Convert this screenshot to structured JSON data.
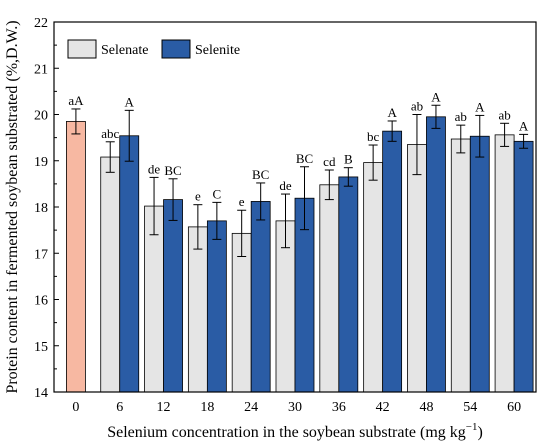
{
  "chart_data": {
    "type": "bar",
    "xlabel": "Selenium concentration in the soybean substrate (mg kg",
    "xlabel_sup": "−1",
    "xlabel_end": ")",
    "ylabel": "Protein content in fermented soybean substrated (%,D.W.)",
    "ylim": [
      14,
      22
    ],
    "yticks": [
      "14",
      "15",
      "16",
      "17",
      "18",
      "19",
      "20",
      "21",
      "22"
    ],
    "categories": [
      "0",
      "6",
      "12",
      "18",
      "24",
      "30",
      "36",
      "42",
      "48",
      "54",
      "60"
    ],
    "control": {
      "value": 19.85,
      "error": 0.27,
      "label": "aA",
      "color": "#F7B8A2"
    },
    "series": [
      {
        "name": "Selenate",
        "color": "#E5E5E5",
        "values": [
          null,
          19.08,
          18.02,
          17.57,
          17.43,
          17.7,
          18.48,
          18.96,
          19.35,
          19.47,
          19.56
        ],
        "errors": [
          null,
          0.33,
          0.62,
          0.48,
          0.5,
          0.58,
          0.32,
          0.38,
          0.65,
          0.3,
          0.25
        ],
        "labels": [
          "",
          "abc",
          "de",
          "e",
          "e",
          "de",
          "cd",
          "bc",
          "ab",
          "ab",
          "ab"
        ]
      },
      {
        "name": "Selenite",
        "color": "#2A5CA5",
        "values": [
          null,
          19.54,
          18.16,
          17.7,
          18.12,
          18.19,
          18.65,
          19.64,
          19.95,
          19.53,
          19.42
        ],
        "errors": [
          null,
          0.55,
          0.45,
          0.4,
          0.4,
          0.68,
          0.2,
          0.22,
          0.25,
          0.45,
          0.15
        ],
        "labels": [
          "",
          "A",
          "BC",
          "C",
          "BC",
          "BC",
          "B",
          "A",
          "A",
          "A",
          "A"
        ]
      }
    ],
    "legend_position": "top-left",
    "grid": false
  }
}
